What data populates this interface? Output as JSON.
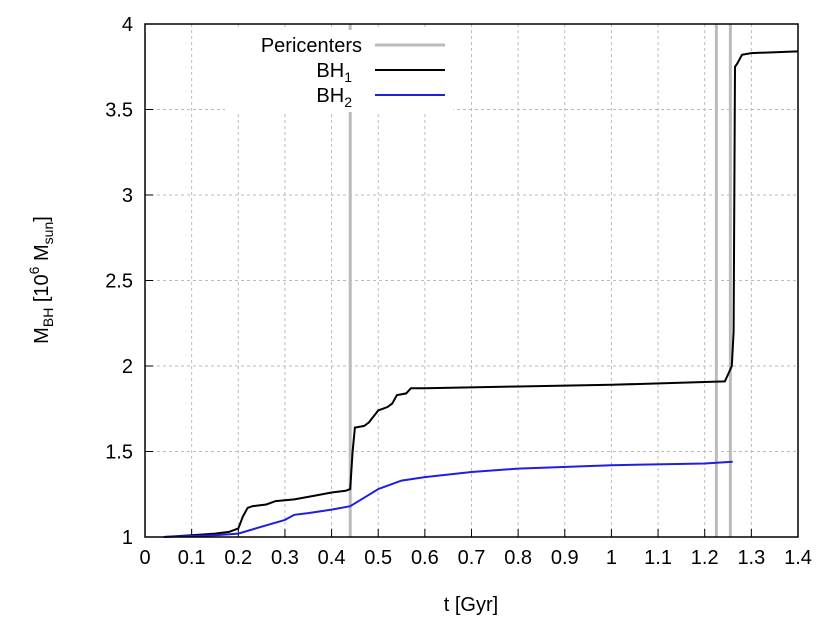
{
  "chart_data": {
    "type": "line",
    "xlabel": "t [Gyr]",
    "ylabel": [
      {
        "text": "M"
      },
      {
        "text": "BH",
        "shift": "sub"
      },
      {
        "text": " [10"
      },
      {
        "text": "6",
        "shift": "sup"
      },
      {
        "text": " M"
      },
      {
        "text": "sun",
        "shift": "sub"
      },
      {
        "text": "]"
      }
    ],
    "xlim": [
      0,
      1.4
    ],
    "ylim": [
      1,
      4
    ],
    "xticks": [
      0,
      0.1,
      0.2,
      0.3,
      0.4,
      0.5,
      0.6,
      0.7,
      0.8,
      0.9,
      1,
      1.1,
      1.2,
      1.3,
      1.4
    ],
    "yticks": [
      1,
      1.5,
      2,
      2.5,
      3,
      3.5,
      4
    ],
    "grid": true,
    "pericenters": {
      "name": "Pericenters",
      "color": "#bbbbbb",
      "x": [
        0.44,
        1.225,
        1.255
      ]
    },
    "series": [
      {
        "name": "BH",
        "name_sub": "1",
        "color": "#000000",
        "x": [
          0.04,
          0.1,
          0.15,
          0.18,
          0.19,
          0.2,
          0.21,
          0.22,
          0.23,
          0.26,
          0.28,
          0.32,
          0.36,
          0.4,
          0.43,
          0.44,
          0.445,
          0.45,
          0.47,
          0.48,
          0.5,
          0.52,
          0.53,
          0.54,
          0.56,
          0.57,
          0.6,
          0.8,
          1.0,
          1.243,
          1.25,
          1.258,
          1.262,
          1.265,
          1.27,
          1.28,
          1.3,
          1.4
        ],
        "values": [
          1.0,
          1.01,
          1.02,
          1.03,
          1.04,
          1.05,
          1.12,
          1.17,
          1.18,
          1.19,
          1.21,
          1.22,
          1.24,
          1.26,
          1.27,
          1.28,
          1.5,
          1.64,
          1.65,
          1.67,
          1.74,
          1.76,
          1.78,
          1.83,
          1.84,
          1.87,
          1.87,
          1.88,
          1.89,
          1.91,
          1.95,
          2.0,
          2.2,
          3.75,
          3.77,
          3.82,
          3.83,
          3.84
        ]
      },
      {
        "name": "BH",
        "name_sub": "2",
        "color": "#1f1fe0",
        "x": [
          0.04,
          0.15,
          0.2,
          0.25,
          0.3,
          0.32,
          0.35,
          0.4,
          0.44,
          0.47,
          0.5,
          0.55,
          0.6,
          0.7,
          0.8,
          1.0,
          1.2,
          1.26
        ],
        "values": [
          1.0,
          1.01,
          1.02,
          1.06,
          1.1,
          1.13,
          1.14,
          1.16,
          1.18,
          1.23,
          1.28,
          1.33,
          1.35,
          1.38,
          1.4,
          1.42,
          1.43,
          1.44
        ]
      }
    ]
  }
}
